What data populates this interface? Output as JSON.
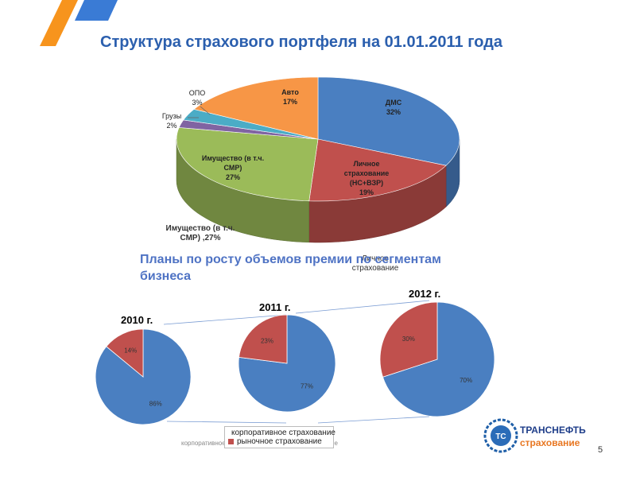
{
  "header": {
    "title": "Структура страхового портфеля на 01.01.2011 года",
    "subtitle": "Планы по росту объемов премии по сегментам бизнеса",
    "page_number": "5"
  },
  "colors": {
    "blue": "#4a7fc1",
    "red": "#c0504d",
    "green": "#9bbb59",
    "purple": "#8064a2",
    "cyan": "#4bacc6",
    "orange": "#f79646",
    "title": "#2b5fae"
  },
  "chart_data": [
    {
      "type": "pie",
      "title": "Структура страхового портфеля на 01.01.2011 года",
      "style": "3d",
      "slices": [
        {
          "label": "ДМС",
          "value": 32,
          "display": "32%",
          "color": "#4a7fc1"
        },
        {
          "label": "Личное страхование (НС+ВЗР)",
          "label_lines": [
            "Личное",
            "страхование",
            "(НС+ВЗР)"
          ],
          "value": 19,
          "display": "19%",
          "color": "#c0504d"
        },
        {
          "label": "Имущество (в т.ч. СМР)",
          "label_lines": [
            "Имущество (в т.ч.",
            "СМР)"
          ],
          "value": 27,
          "display": "27%",
          "color": "#9bbb59"
        },
        {
          "label": "Грузы",
          "value": 2,
          "display": "2%",
          "color": "#8064a2"
        },
        {
          "label": "ОПО",
          "value": 3,
          "display": "3%",
          "color": "#4bacc6"
        },
        {
          "label": "Авто",
          "value": 17,
          "display": "17%",
          "color": "#f79646"
        }
      ],
      "ghost_labels": [
        "Имущество (в т.ч.",
        "СМР) ,27%",
        "Личное",
        "страхование"
      ]
    },
    {
      "type": "pie",
      "title": "2010 г.",
      "slices": [
        {
          "label": "корпоративное страхование",
          "value": 86,
          "display": "86%",
          "color": "#4a7fc1"
        },
        {
          "label": "рыночное страхование",
          "value": 14,
          "display": "14%",
          "color": "#c0504d"
        }
      ]
    },
    {
      "type": "pie",
      "title": "2011 г.",
      "slices": [
        {
          "label": "корпоративное страхование",
          "value": 77,
          "display": "77%",
          "color": "#4a7fc1"
        },
        {
          "label": "рыночное страхование",
          "value": 23,
          "display": "23%",
          "color": "#c0504d"
        }
      ]
    },
    {
      "type": "pie",
      "title": "2012 г.",
      "slices": [
        {
          "label": "корпоративное страхование",
          "value": 70,
          "display": "70%",
          "color": "#4a7fc1"
        },
        {
          "label": "рыночное страхование",
          "value": 30,
          "display": "30%",
          "color": "#c0504d"
        }
      ]
    }
  ],
  "legend": {
    "items": [
      {
        "label": "корпоративное страхование",
        "color": "#4a7fc1"
      },
      {
        "label": "рыночное страхование",
        "color": "#c0504d"
      }
    ],
    "ghost_text": "корпоративное страхование   рыночное страхование"
  },
  "logo": {
    "line1": "ТРАНСНЕФТЬ",
    "line2": "страхование",
    "emblem_text": "ТС"
  }
}
